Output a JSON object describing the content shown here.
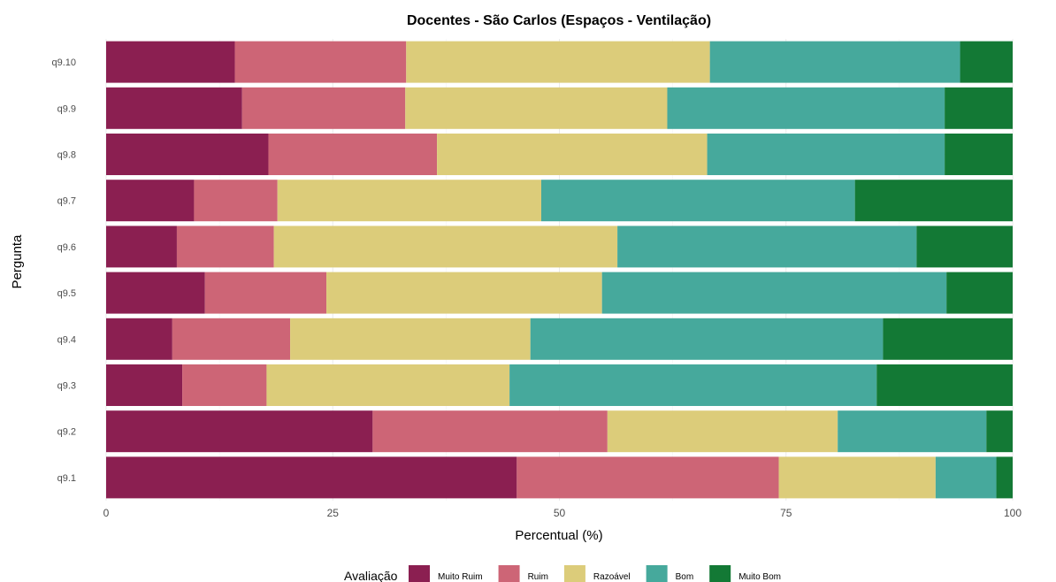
{
  "chart_data": {
    "type": "bar",
    "orientation": "horizontal",
    "stacked": true,
    "title": "Docentes - São Carlos (Espaços - Ventilação)",
    "xlabel": "Percentual (%)",
    "ylabel": "Pergunta",
    "xlim": [
      0,
      100
    ],
    "x_ticks": [
      "0",
      "25",
      "50",
      "75",
      "100"
    ],
    "grid": true,
    "legend": {
      "title": "Avaliação",
      "position": "bottom"
    },
    "categories": [
      "q9.10",
      "q9.9",
      "q9.8",
      "q9.7",
      "q9.6",
      "q9.5",
      "q9.4",
      "q9.3",
      "q9.2",
      "q9.1"
    ],
    "series": [
      {
        "name": "Muito Ruim",
        "color": "#8b1f51",
        "values": [
          14.2,
          15.0,
          17.9,
          9.7,
          7.8,
          10.9,
          7.3,
          8.4,
          29.4,
          45.3
        ]
      },
      {
        "name": "Ruim",
        "color": "#cd6576",
        "values": [
          18.9,
          18.0,
          18.6,
          9.2,
          10.7,
          13.4,
          13.0,
          9.3,
          25.9,
          28.9
        ]
      },
      {
        "name": "Razoável",
        "color": "#dccc7a",
        "values": [
          33.5,
          28.9,
          29.8,
          29.1,
          37.9,
          30.4,
          26.5,
          26.8,
          25.4,
          17.3
        ]
      },
      {
        "name": "Bom",
        "color": "#46a99c",
        "values": [
          27.6,
          30.6,
          26.2,
          34.6,
          33.0,
          38.0,
          38.9,
          40.5,
          16.4,
          6.7
        ]
      },
      {
        "name": "Muito Bom",
        "color": "#137935",
        "values": [
          5.8,
          7.5,
          7.5,
          17.4,
          10.6,
          7.3,
          14.3,
          15.0,
          2.9,
          1.8
        ]
      }
    ]
  }
}
